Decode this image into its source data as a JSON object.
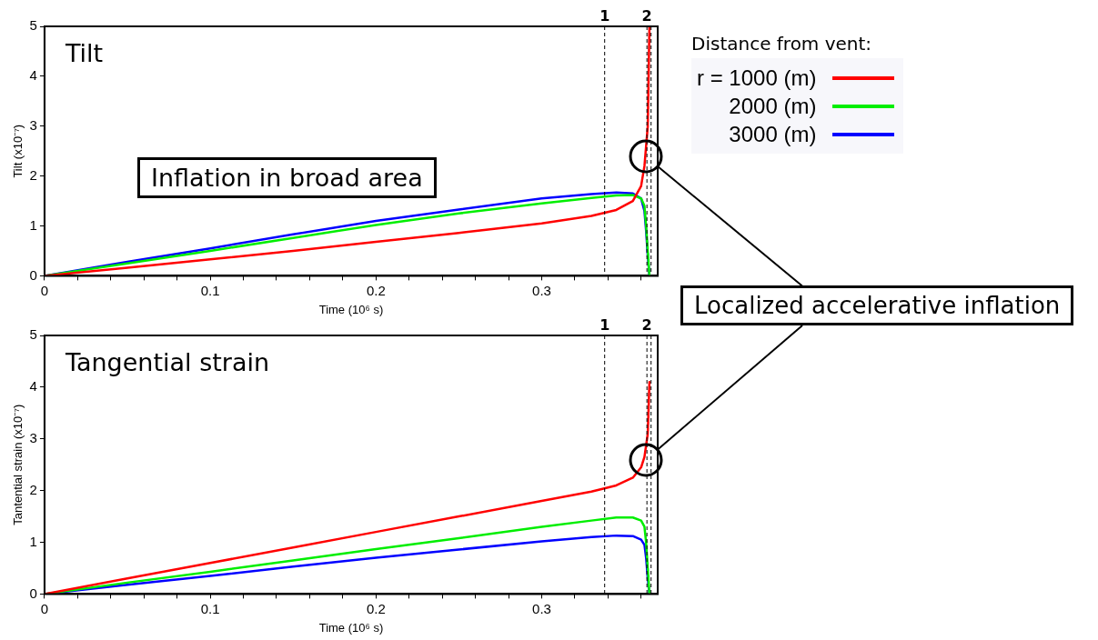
{
  "chart_data": [
    {
      "type": "line",
      "ylabel": "Tilt (x10⁻⁷)",
      "xlabel": "Time (10⁶ s)",
      "legend_title": "Distance from vent:",
      "legend": "top right",
      "xlim": [
        0,
        0.37
      ],
      "ylim": [
        0,
        5
      ],
      "xticks": [
        0,
        {
          "value": 0.02,
          "label": null
        },
        {
          "value": 0.04,
          "label": null
        },
        {
          "value": 0.06,
          "label": null
        },
        {
          "value": 0.08,
          "label": null
        },
        0.1,
        {
          "value": 0.12,
          "label": null
        },
        {
          "value": 0.14,
          "label": null
        },
        {
          "value": 0.16,
          "label": null
        },
        {
          "value": 0.18,
          "label": null
        },
        0.2,
        {
          "value": 0.22,
          "label": null
        },
        {
          "value": 0.24,
          "label": null
        },
        {
          "value": 0.26,
          "label": null
        },
        {
          "value": 0.28,
          "label": null
        },
        0.3,
        {
          "value": 0.32,
          "label": null
        },
        {
          "value": 0.34,
          "label": null
        },
        {
          "value": 0.36,
          "label": null
        }
      ],
      "yticks": [
        0,
        1,
        2,
        3,
        4,
        5
      ],
      "marker": "none",
      "series": [
        {
          "name": "r = 1000 (m)",
          "color": "#ff0000",
          "x": [
            0,
            0.05,
            0.1,
            0.15,
            0.2,
            0.25,
            0.3,
            0.33,
            0.345,
            0.355,
            0.36,
            0.362,
            0.364,
            0.365
          ],
          "values": [
            0,
            0.16,
            0.33,
            0.5,
            0.68,
            0.86,
            1.05,
            1.2,
            1.32,
            1.5,
            1.8,
            2.2,
            3.0,
            5.0
          ]
        },
        {
          "name": "2000 (m)",
          "color": "#00ee00",
          "x": [
            0,
            0.05,
            0.1,
            0.15,
            0.2,
            0.25,
            0.3,
            0.33,
            0.345,
            0.355,
            0.36,
            0.362,
            0.363,
            0.364,
            0.365
          ],
          "values": [
            0,
            0.25,
            0.5,
            0.76,
            1.02,
            1.25,
            1.45,
            1.56,
            1.61,
            1.62,
            1.55,
            1.4,
            1.0,
            0.5,
            0
          ]
        },
        {
          "name": "3000 (m)",
          "color": "#0000ff",
          "x": [
            0,
            0.05,
            0.1,
            0.15,
            0.2,
            0.25,
            0.3,
            0.33,
            0.345,
            0.355,
            0.36,
            0.362,
            0.363,
            0.364,
            0.365
          ],
          "values": [
            0,
            0.28,
            0.55,
            0.83,
            1.1,
            1.33,
            1.55,
            1.64,
            1.67,
            1.65,
            1.55,
            1.3,
            0.9,
            0.4,
            0
          ]
        }
      ],
      "ref_lines": [
        {
          "axis": "x",
          "value": 0.338,
          "line_style": "dashed"
        },
        {
          "axis": "x",
          "value": 0.3635,
          "line_style": "dashed"
        },
        {
          "axis": "x",
          "value": 0.366,
          "line_style": "dashed"
        }
      ],
      "annotations": [
        "Tilt",
        "Inflation in broad area",
        "Localized accelerative inflation",
        "1",
        "2"
      ]
    },
    {
      "type": "line",
      "ylabel": "Tantential strain (x10⁻⁷)",
      "xlabel": "Time (10⁶ s)",
      "xlim": [
        0,
        0.37
      ],
      "ylim": [
        0,
        5
      ],
      "xticks": [
        0,
        {
          "value": 0.02,
          "label": null
        },
        {
          "value": 0.04,
          "label": null
        },
        {
          "value": 0.06,
          "label": null
        },
        {
          "value": 0.08,
          "label": null
        },
        0.1,
        {
          "value": 0.12,
          "label": null
        },
        {
          "value": 0.14,
          "label": null
        },
        {
          "value": 0.16,
          "label": null
        },
        {
          "value": 0.18,
          "label": null
        },
        0.2,
        {
          "value": 0.22,
          "label": null
        },
        {
          "value": 0.24,
          "label": null
        },
        {
          "value": 0.26,
          "label": null
        },
        {
          "value": 0.28,
          "label": null
        },
        0.3,
        {
          "value": 0.32,
          "label": null
        },
        {
          "value": 0.34,
          "label": null
        },
        {
          "value": 0.36,
          "label": null
        }
      ],
      "yticks": [
        0,
        1,
        2,
        3,
        4,
        5
      ],
      "marker": "none",
      "series": [
        {
          "color": "#ff0000",
          "x": [
            0,
            0.05,
            0.1,
            0.15,
            0.2,
            0.25,
            0.3,
            0.33,
            0.345,
            0.355,
            0.36,
            0.362,
            0.364,
            0.365
          ],
          "values": [
            0,
            0.3,
            0.6,
            0.9,
            1.2,
            1.5,
            1.8,
            1.98,
            2.1,
            2.25,
            2.45,
            2.65,
            3.1,
            4.1
          ]
        },
        {
          "color": "#00ee00",
          "x": [
            0,
            0.05,
            0.1,
            0.15,
            0.2,
            0.25,
            0.3,
            0.33,
            0.345,
            0.355,
            0.36,
            0.362,
            0.363,
            0.364,
            0.365
          ],
          "values": [
            0,
            0.22,
            0.43,
            0.65,
            0.87,
            1.08,
            1.3,
            1.42,
            1.48,
            1.48,
            1.42,
            1.3,
            1.0,
            0.5,
            0
          ]
        },
        {
          "color": "#0000ff",
          "x": [
            0,
            0.05,
            0.1,
            0.15,
            0.2,
            0.25,
            0.3,
            0.33,
            0.345,
            0.355,
            0.36,
            0.362,
            0.363,
            0.364,
            0.365
          ],
          "values": [
            0,
            0.18,
            0.35,
            0.53,
            0.7,
            0.86,
            1.02,
            1.1,
            1.13,
            1.12,
            1.05,
            0.95,
            0.7,
            0.3,
            0
          ]
        }
      ],
      "ref_lines": [
        {
          "axis": "x",
          "value": 0.338,
          "line_style": "dashed"
        },
        {
          "axis": "x",
          "value": 0.3635,
          "line_style": "dashed"
        },
        {
          "axis": "x",
          "value": 0.366,
          "line_style": "dashed"
        }
      ],
      "annotations": [
        "Tangential strain",
        "1",
        "2"
      ]
    }
  ]
}
